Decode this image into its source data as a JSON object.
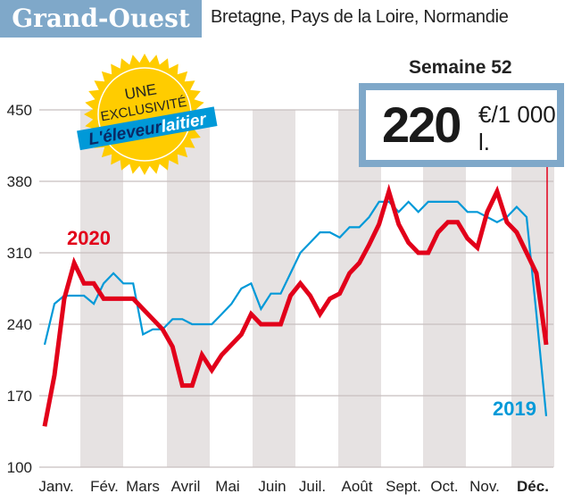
{
  "header": {
    "title": "Grand-Ouest",
    "subtitle": "Bretagne, Pays de la Loire, Normandie"
  },
  "badge": {
    "line1": "UNE",
    "line2": "EXCLUSIVITÉ",
    "brand_a": "L'éleveur",
    "brand_b": "laitier"
  },
  "price": {
    "week_label": "Semaine 52",
    "value": "220",
    "unit": "€/1 000 l."
  },
  "chart_data": {
    "type": "line",
    "x": [
      1,
      2,
      3,
      4,
      5,
      6,
      7,
      8,
      9,
      10,
      11,
      12,
      13,
      14,
      15,
      16,
      17,
      18,
      19,
      20,
      21,
      22,
      23,
      24,
      25,
      26,
      27,
      28,
      29,
      30,
      31,
      32,
      33,
      34,
      35,
      36,
      37,
      38,
      39,
      40,
      41,
      42,
      43,
      44,
      45,
      46,
      47,
      48,
      49,
      50,
      51,
      52
    ],
    "categories": [
      "Janv.",
      "Fév.",
      "Mars",
      "Avril",
      "Mai",
      "Juin",
      "Juil.",
      "Août",
      "Sept.",
      "Oct.",
      "Nov.",
      "Déc."
    ],
    "yticks": [
      100,
      170,
      240,
      310,
      380,
      450
    ],
    "ylim": [
      100,
      450
    ],
    "grid": true,
    "series": [
      {
        "name": "2019",
        "color": "#0099d8",
        "values": [
          220,
          260,
          268,
          268,
          268,
          260,
          280,
          290,
          280,
          280,
          230,
          235,
          235,
          245,
          245,
          240,
          240,
          240,
          250,
          260,
          275,
          280,
          255,
          270,
          270,
          290,
          310,
          320,
          330,
          330,
          325,
          335,
          335,
          345,
          360,
          360,
          350,
          360,
          350,
          360,
          360,
          360,
          360,
          350,
          350,
          345,
          340,
          345,
          355,
          345,
          250,
          150
        ]
      },
      {
        "name": "2020",
        "color": "#e2001a",
        "values": [
          140,
          190,
          265,
          300,
          280,
          280,
          265,
          265,
          265,
          265,
          255,
          245,
          235,
          218,
          180,
          180,
          210,
          195,
          210,
          220,
          230,
          250,
          240,
          240,
          240,
          268,
          280,
          268,
          250,
          265,
          270,
          290,
          300,
          318,
          338,
          370,
          338,
          320,
          310,
          310,
          330,
          340,
          340,
          324,
          315,
          350,
          370,
          340,
          330,
          310,
          290,
          220
        ]
      }
    ],
    "colors": {
      "band": "#e6e2e2",
      "grid": "#c8bfbf",
      "header": "#7fa8c9",
      "badge": "#ffcc00",
      "brand": "#0099d8"
    }
  }
}
